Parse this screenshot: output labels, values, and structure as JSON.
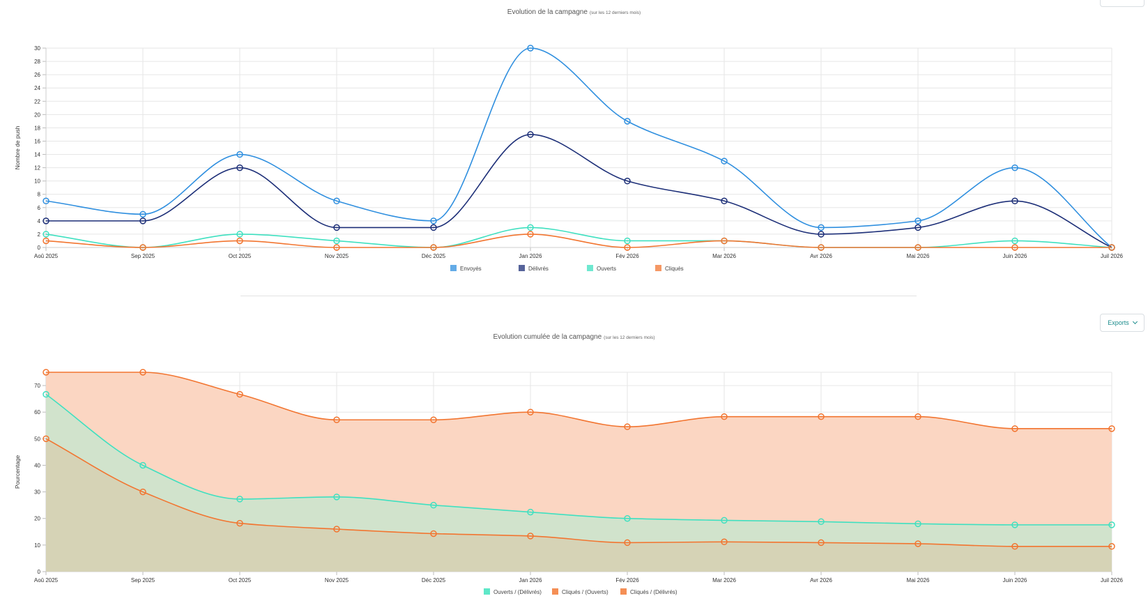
{
  "chart1": {
    "title": "Evolution de la campagne",
    "subtitle": "(sur les 12 derniers mois)"
  },
  "chart2": {
    "title": "Evolution cumulée de la campagne",
    "subtitle": "(sur les 12 derniers mois)",
    "export_label": "Exports"
  },
  "colors": {
    "envoyes": "#2f8fdf",
    "delivres": "#1d2f78",
    "ouverts": "#3fe0c0",
    "cliques": "#f27530",
    "area_cliques": "#fbd6c2",
    "area_ouverts": "#d1e3cc",
    "area_base": "#d6d3b6",
    "export_text": "#1b8c8c"
  },
  "chart_data": [
    {
      "type": "line",
      "title": "Evolution de la campagne",
      "subtitle": "(sur les 12 derniers mois)",
      "xlabel": "",
      "ylabel": "Nombre de push",
      "ylim": [
        0,
        30
      ],
      "yticks": [
        0,
        2,
        4,
        6,
        8,
        10,
        12,
        14,
        16,
        18,
        20,
        22,
        24,
        26,
        28,
        30
      ],
      "grid": true,
      "legend_position": "bottom",
      "categories": [
        "Aoû 2025",
        "Sep 2025",
        "Oct 2025",
        "Nov 2025",
        "Déc 2025",
        "Jan 2026",
        "Fév 2026",
        "Mar 2026",
        "Avr 2026",
        "Mai 2026",
        "Juin 2026",
        "Juil 2026"
      ],
      "series": [
        {
          "name": "Envoyés",
          "color": "#2f8fdf",
          "values": [
            7,
            5,
            14,
            7,
            4,
            30,
            19,
            13,
            3,
            4,
            12,
            0
          ]
        },
        {
          "name": "Délivrés",
          "color": "#1d2f78",
          "values": [
            4,
            4,
            12,
            3,
            3,
            17,
            10,
            7,
            2,
            3,
            7,
            0
          ]
        },
        {
          "name": "Ouverts",
          "color": "#3fe0c0",
          "values": [
            2,
            0,
            2,
            1,
            0,
            3,
            1,
            1,
            0,
            0,
            1,
            0
          ]
        },
        {
          "name": "Cliqués",
          "color": "#f27530",
          "values": [
            1,
            0,
            1,
            0,
            0,
            2,
            0,
            1,
            0,
            0,
            0,
            0
          ]
        }
      ]
    },
    {
      "type": "area",
      "title": "Evolution cumulée de la campagne",
      "subtitle": "(sur les 12 derniers mois)",
      "xlabel": "",
      "ylabel": "Pourcentage",
      "ylim": [
        0,
        75
      ],
      "yticks": [
        0,
        10,
        20,
        30,
        40,
        50,
        60,
        70
      ],
      "grid": true,
      "legend_position": "bottom",
      "categories": [
        "Aoû 2025",
        "Sep 2025",
        "Oct 2025",
        "Nov 2025",
        "Déc 2025",
        "Jan 2026",
        "Fév 2026",
        "Mar 2026",
        "Avr 2026",
        "Mai 2026",
        "Juin 2026",
        "Juil 2026"
      ],
      "series": [
        {
          "name": "Ouverts / (Délivrés)",
          "color": "#3fe0c0",
          "fill": "#d1e3cc",
          "values": [
            66.7,
            40,
            27.3,
            28.1,
            25,
            22.4,
            20,
            19.3,
            18.8,
            18,
            17.6,
            17.6
          ]
        },
        {
          "name": "Cliqués / (Ouverts)",
          "color": "#f27530",
          "fill": "#fbd6c2",
          "values": [
            75,
            75,
            66.7,
            57.1,
            57.1,
            60,
            54.5,
            58.3,
            58.3,
            58.3,
            53.8,
            53.8
          ]
        },
        {
          "name": "Cliqués / (Délivrés)",
          "color": "#f27530",
          "fill": "#d6d3b6",
          "values": [
            50,
            30,
            18.2,
            16,
            14.3,
            13.4,
            10.9,
            11.2,
            10.9,
            10.5,
            9.5,
            9.5
          ]
        }
      ]
    }
  ]
}
